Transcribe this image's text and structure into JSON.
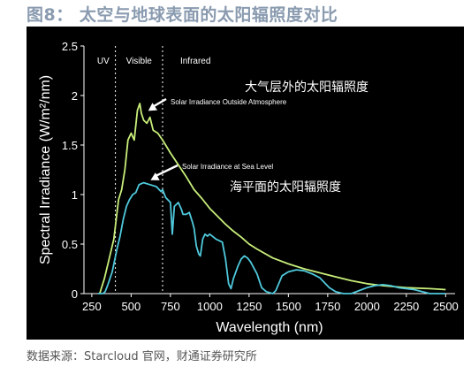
{
  "figure": {
    "title": "图8： 太空与地球表面的太阳辐照度对比",
    "caption": "数据来源：Starcloud 官网，财通证券研究所"
  },
  "chart_data": {
    "type": "line",
    "xlabel": "Wavelength (nm)",
    "ylabel": "Spectral Irradiance (W/m²/nm)",
    "xlim": [
      200,
      2560
    ],
    "ylim": [
      0,
      2.5
    ],
    "xticks": [
      250,
      500,
      750,
      1000,
      1250,
      1500,
      1750,
      2000,
      2250,
      2500
    ],
    "yticks": [
      0,
      0.5,
      1,
      1.5,
      2,
      2.5
    ],
    "ytick_labels": [
      "0",
      "0.5",
      "1",
      "1.5",
      "2",
      "2.5"
    ],
    "grid": false,
    "regions": [
      {
        "label": "UV",
        "x_start": 250,
        "x_end": 400
      },
      {
        "label": "Visible",
        "x_start": 400,
        "x_end": 700
      },
      {
        "label": "Infrared",
        "x_start": 700,
        "x_end": 2500
      }
    ],
    "region_dividers": [
      400,
      700
    ],
    "series": [
      {
        "color": "#c8ee7a",
        "points": [
          [
            300,
            0
          ],
          [
            330,
            0.15
          ],
          [
            360,
            0.35
          ],
          [
            390,
            0.55
          ],
          [
            420,
            0.95
          ],
          [
            440,
            1.05
          ],
          [
            460,
            1.25
          ],
          [
            480,
            1.55
          ],
          [
            500,
            1.62
          ],
          [
            520,
            1.55
          ],
          [
            540,
            1.85
          ],
          [
            555,
            1.92
          ],
          [
            565,
            1.82
          ],
          [
            580,
            1.75
          ],
          [
            600,
            1.72
          ],
          [
            620,
            1.78
          ],
          [
            640,
            1.65
          ],
          [
            670,
            1.62
          ],
          [
            700,
            1.55
          ],
          [
            750,
            1.42
          ],
          [
            800,
            1.3
          ],
          [
            850,
            1.18
          ],
          [
            900,
            1.05
          ],
          [
            950,
            0.96
          ],
          [
            1000,
            0.86
          ],
          [
            1050,
            0.78
          ],
          [
            1100,
            0.7
          ],
          [
            1150,
            0.63
          ],
          [
            1200,
            0.57
          ],
          [
            1250,
            0.5
          ],
          [
            1300,
            0.45
          ],
          [
            1400,
            0.36
          ],
          [
            1500,
            0.3
          ],
          [
            1600,
            0.25
          ],
          [
            1700,
            0.21
          ],
          [
            1800,
            0.17
          ],
          [
            1900,
            0.13
          ],
          [
            2000,
            0.1
          ],
          [
            2100,
            0.08
          ],
          [
            2250,
            0.06
          ],
          [
            2400,
            0.05
          ],
          [
            2500,
            0.04
          ]
        ]
      },
      {
        "color": "#4fc9dc",
        "points": [
          [
            290,
            0
          ],
          [
            320,
            0
          ],
          [
            335,
            0.02
          ],
          [
            350,
            0.08
          ],
          [
            380,
            0.22
          ],
          [
            410,
            0.45
          ],
          [
            430,
            0.58
          ],
          [
            450,
            0.75
          ],
          [
            470,
            0.88
          ],
          [
            490,
            0.95
          ],
          [
            510,
            1.0
          ],
          [
            530,
            1.02
          ],
          [
            550,
            1.1
          ],
          [
            580,
            1.12
          ],
          [
            620,
            1.1
          ],
          [
            660,
            1.08
          ],
          [
            690,
            1.03
          ],
          [
            700,
            1.05
          ],
          [
            720,
            0.97
          ],
          [
            750,
            0.92
          ],
          [
            762,
            0.6
          ],
          [
            775,
            0.88
          ],
          [
            800,
            0.92
          ],
          [
            820,
            0.85
          ],
          [
            830,
            0.8
          ],
          [
            850,
            0.8
          ],
          [
            870,
            0.82
          ],
          [
            890,
            0.72
          ],
          [
            900,
            0.66
          ],
          [
            915,
            0.48
          ],
          [
            930,
            0.4
          ],
          [
            940,
            0.38
          ],
          [
            955,
            0.55
          ],
          [
            970,
            0.6
          ],
          [
            985,
            0.58
          ],
          [
            1000,
            0.6
          ],
          [
            1040,
            0.55
          ],
          [
            1080,
            0.52
          ],
          [
            1100,
            0.35
          ],
          [
            1120,
            0.1
          ],
          [
            1135,
            0.05
          ],
          [
            1150,
            0.15
          ],
          [
            1180,
            0.28
          ],
          [
            1200,
            0.35
          ],
          [
            1220,
            0.38
          ],
          [
            1240,
            0.36
          ],
          [
            1260,
            0.32
          ],
          [
            1280,
            0.26
          ],
          [
            1300,
            0.2
          ],
          [
            1330,
            0.06
          ],
          [
            1360,
            0.02
          ],
          [
            1400,
            0
          ],
          [
            1420,
            0.03
          ],
          [
            1460,
            0.18
          ],
          [
            1500,
            0.22
          ],
          [
            1550,
            0.24
          ],
          [
            1600,
            0.23
          ],
          [
            1650,
            0.2
          ],
          [
            1700,
            0.16
          ],
          [
            1760,
            0.06
          ],
          [
            1800,
            0.02
          ],
          [
            1850,
            0
          ],
          [
            1900,
            0
          ],
          [
            1950,
            0.03
          ],
          [
            2000,
            0.06
          ],
          [
            2050,
            0.08
          ],
          [
            2100,
            0.09
          ],
          [
            2150,
            0.08
          ],
          [
            2200,
            0.06
          ],
          [
            2300,
            0.04
          ],
          [
            2400,
            0
          ],
          [
            2500,
            0
          ]
        ]
      }
    ],
    "annotations": [
      {
        "text": "Solar Irradiance Outside Atmosphere",
        "arrow_to": [
          575,
          1.8
        ]
      },
      {
        "text": "Solar Irradiance at Sea Level",
        "arrow_to": [
          590,
          1.1
        ]
      }
    ],
    "overlay_labels": [
      {
        "text": "大气层外的太阳辐照度"
      },
      {
        "text": "海平面的太阳辐照度"
      }
    ]
  }
}
